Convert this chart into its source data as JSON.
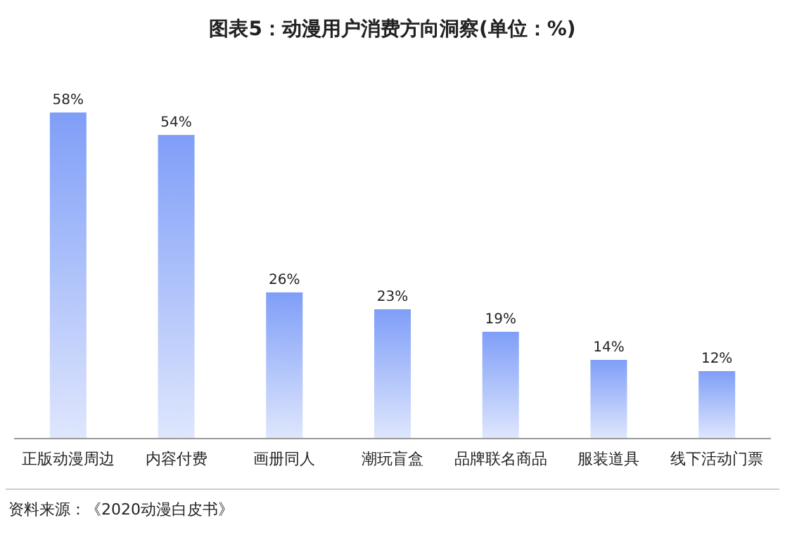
{
  "chart_data": {
    "type": "bar",
    "title": "图表5：动漫用户消费方向洞察(单位：%)",
    "categories": [
      "正版动漫周边",
      "内容付费",
      "画册同人",
      "潮玩盲盒",
      "品牌联名商品",
      "服装道具",
      "线下活动门票"
    ],
    "values": [
      58,
      54,
      26,
      23,
      19,
      14,
      12
    ],
    "color": "#7f9ef7",
    "value_labels": [
      "58%",
      "54%",
      "26%",
      "23%",
      "19%",
      "14%",
      "12%"
    ],
    "annotations": [
      "资料来源：《2020动漫白皮书》"
    ]
  }
}
